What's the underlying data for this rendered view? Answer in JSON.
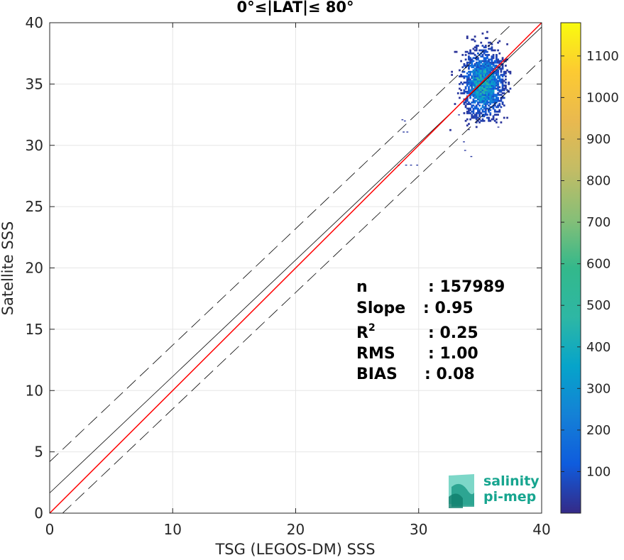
{
  "chart_data": {
    "type": "heatmap",
    "title": "0°≤|LAT|≤ 80°",
    "xlabel": "TSG (LEGOS-DM) SSS",
    "ylabel": "Satellite SSS",
    "xlim": [
      0,
      40
    ],
    "ylim": [
      0,
      40
    ],
    "xticks": [
      0,
      10,
      20,
      30,
      40
    ],
    "yticks": [
      0,
      5,
      10,
      15,
      20,
      25,
      30,
      35,
      40
    ],
    "grid": true,
    "lines": {
      "identity": {
        "slope": 1.0,
        "intercept": 0.0,
        "color": "#ff0000"
      },
      "fit": {
        "slope": 0.95,
        "intercept": 1.65,
        "color": "#000000"
      },
      "upper_bound": {
        "slope": 0.95,
        "intercept": 4.2,
        "color": "#000000",
        "dash": true
      },
      "lower_bound": {
        "slope": 0.95,
        "intercept": -1.0,
        "color": "#000000",
        "dash": true
      }
    },
    "density": {
      "center": [
        35.2,
        35.0
      ],
      "spread": [
        0.8,
        1.35
      ],
      "max_count": 1150,
      "outliers": [
        [
          28.6,
          32.0
        ],
        [
          28.8,
          31.9
        ],
        [
          28.7,
          31.0
        ],
        [
          29.0,
          31.0
        ],
        [
          28.3,
          28.3
        ],
        [
          28.9,
          28.3
        ],
        [
          29.3,
          28.3
        ],
        [
          29.8,
          28.3
        ],
        [
          33.6,
          30.2
        ],
        [
          33.7,
          29.5
        ],
        [
          34.2,
          29.0
        ],
        [
          34.0,
          31.2
        ],
        [
          33.2,
          32.4
        ],
        [
          36.4,
          31.4
        ]
      ]
    },
    "colorbar": {
      "min": 0,
      "max": 1180,
      "ticks": [
        100,
        200,
        300,
        400,
        500,
        600,
        700,
        800,
        900,
        1000,
        1100
      ],
      "colormap": "parula"
    },
    "stats": [
      {
        "label": "n",
        "value": ": 157989"
      },
      {
        "label": "Slope",
        "value": ": 0.95"
      },
      {
        "label": "R",
        "sup": "2",
        "value": ": 0.25"
      },
      {
        "label": "RMS",
        "value": ": 1.00"
      },
      {
        "label": "BIAS",
        "value": ": 0.08"
      }
    ]
  },
  "logo": {
    "line1": "salinity",
    "line2": "pi-mep"
  }
}
